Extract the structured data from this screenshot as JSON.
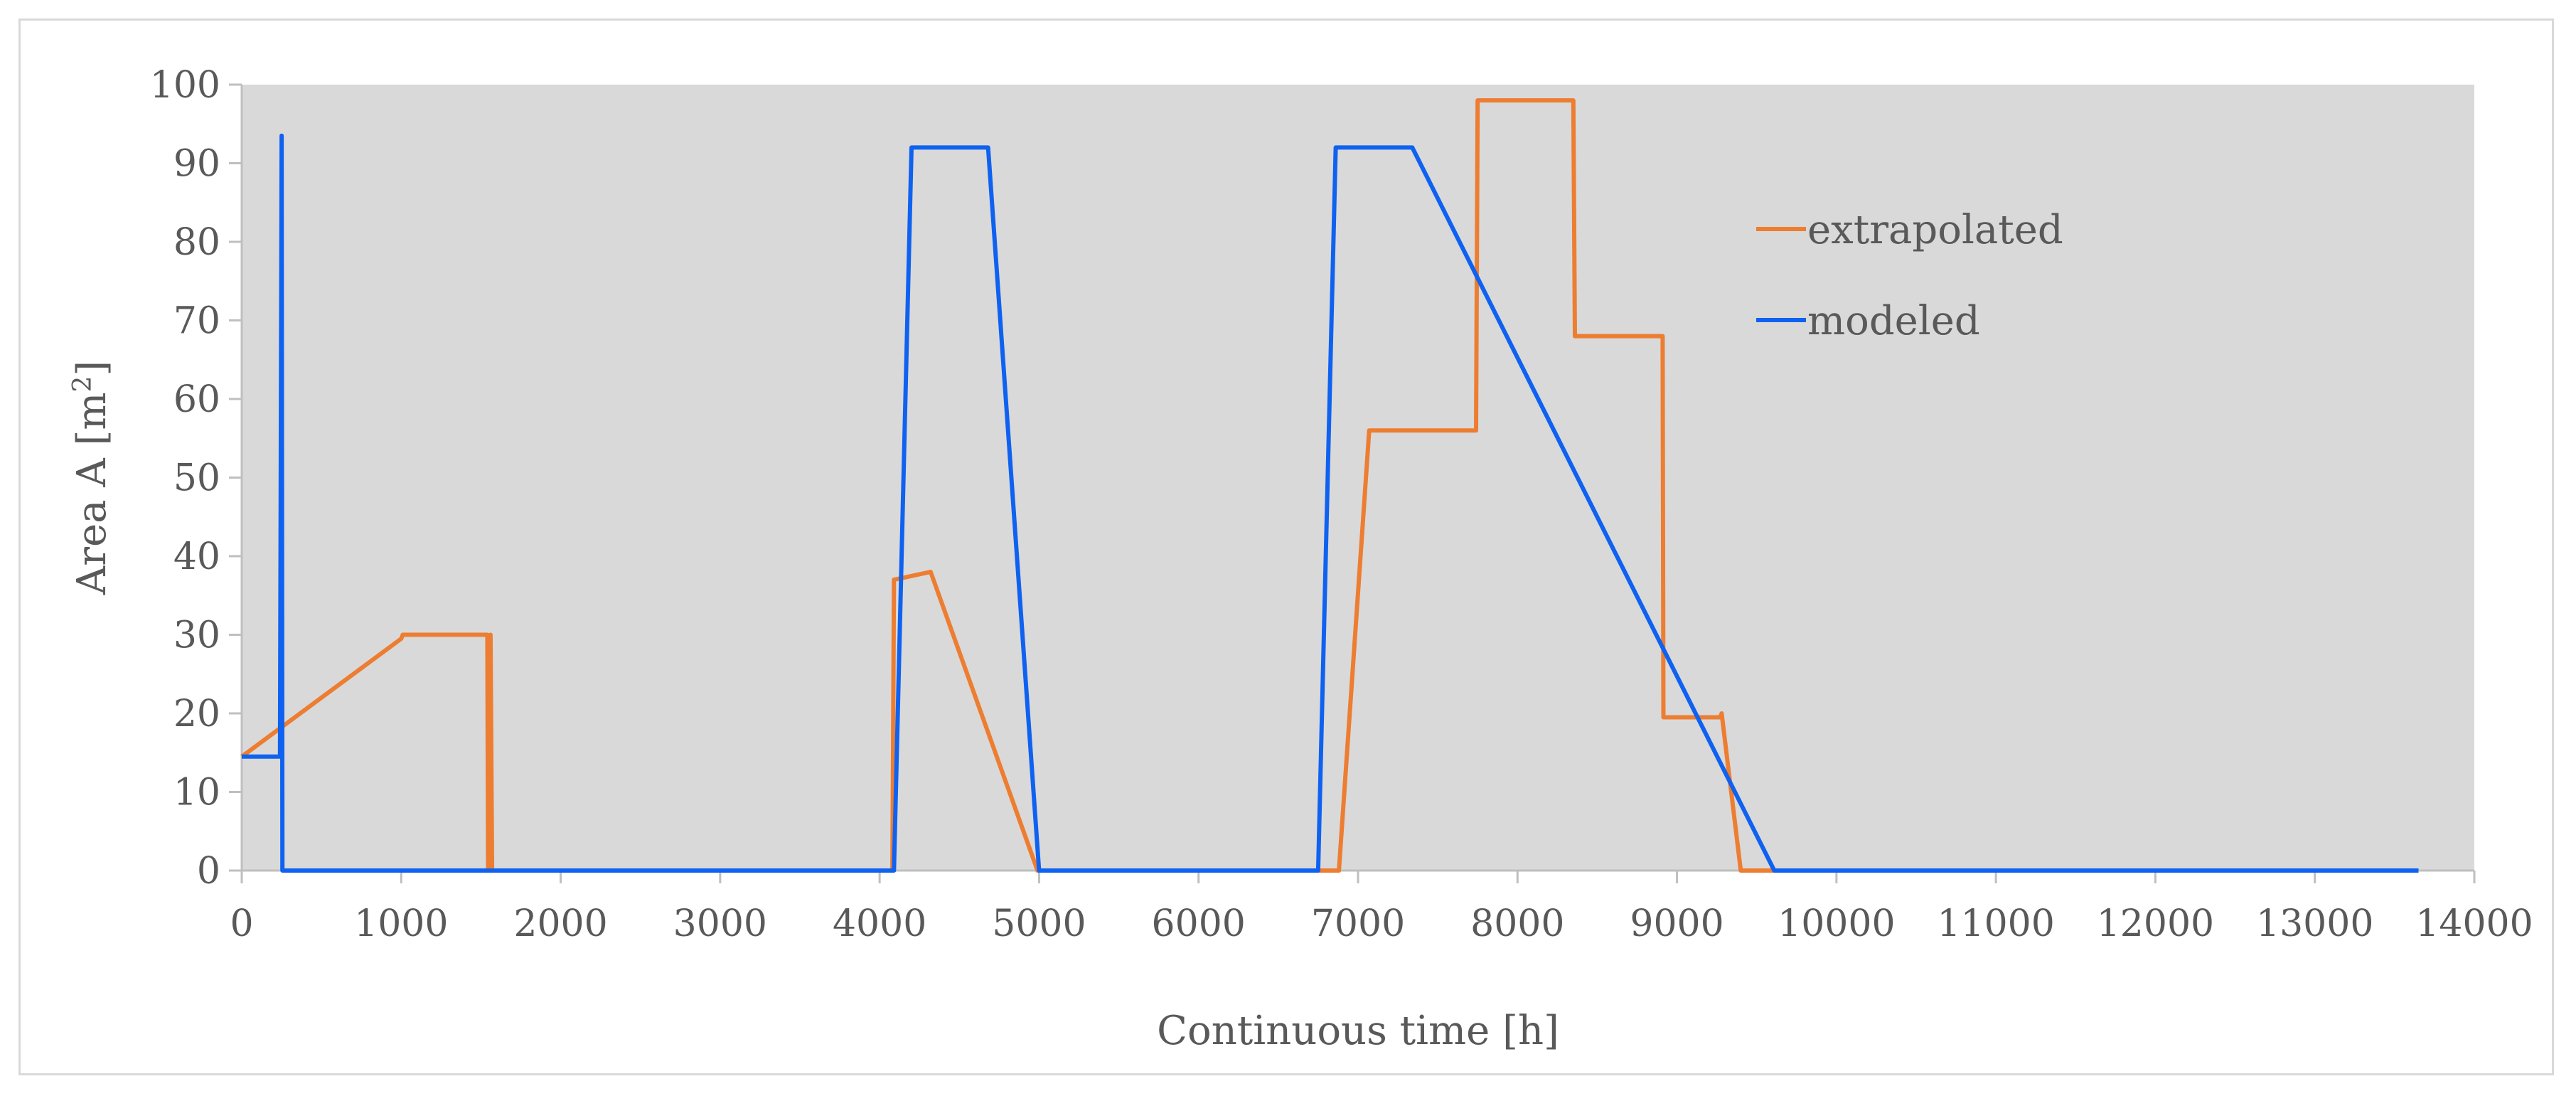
{
  "chart_data": {
    "type": "line",
    "title": "",
    "xlabel": "Continuous time [h]",
    "ylabel": "Area A  [m²]",
    "ylabel_main": "Area A  [m",
    "ylabel_sup": "2",
    "ylabel_end": "]",
    "xlim": [
      0,
      14000
    ],
    "ylim": [
      0,
      100
    ],
    "xticks": [
      0,
      1000,
      2000,
      3000,
      4000,
      5000,
      6000,
      7000,
      8000,
      9000,
      10000,
      11000,
      12000,
      13000,
      14000
    ],
    "yticks": [
      0,
      10,
      20,
      30,
      40,
      50,
      60,
      70,
      80,
      90,
      100
    ],
    "grid": false,
    "plot_background": "#d9d9d9",
    "legend_position": "top-right",
    "series": [
      {
        "name": "extrapolated",
        "color": "#ed7d31",
        "points": [
          [
            0,
            14.5
          ],
          [
            1000,
            29.5
          ],
          [
            1010,
            30
          ],
          [
            1540,
            30
          ],
          [
            1545,
            0
          ],
          [
            1555,
            0
          ],
          [
            1560,
            30
          ],
          [
            1570,
            0
          ],
          [
            4080,
            0
          ],
          [
            4090,
            37
          ],
          [
            4320,
            38
          ],
          [
            4990,
            0
          ],
          [
            6880,
            0
          ],
          [
            7070,
            56
          ],
          [
            7740,
            56
          ],
          [
            7750,
            98
          ],
          [
            8350,
            98
          ],
          [
            8360,
            68
          ],
          [
            8910,
            68
          ],
          [
            8915,
            19.5
          ],
          [
            9270,
            19.5
          ],
          [
            9280,
            20
          ],
          [
            9400,
            0
          ],
          [
            9610,
            0
          ]
        ]
      },
      {
        "name": "modeled",
        "color": "#0f62f0",
        "points": [
          [
            0,
            14.5
          ],
          [
            240,
            14.5
          ],
          [
            250,
            93.5
          ],
          [
            255,
            0
          ],
          [
            4090,
            0
          ],
          [
            4200,
            92
          ],
          [
            4680,
            92
          ],
          [
            5000,
            0
          ],
          [
            6750,
            0
          ],
          [
            6860,
            92
          ],
          [
            7340,
            92
          ],
          [
            9610,
            0
          ],
          [
            13650,
            0
          ]
        ]
      }
    ]
  }
}
